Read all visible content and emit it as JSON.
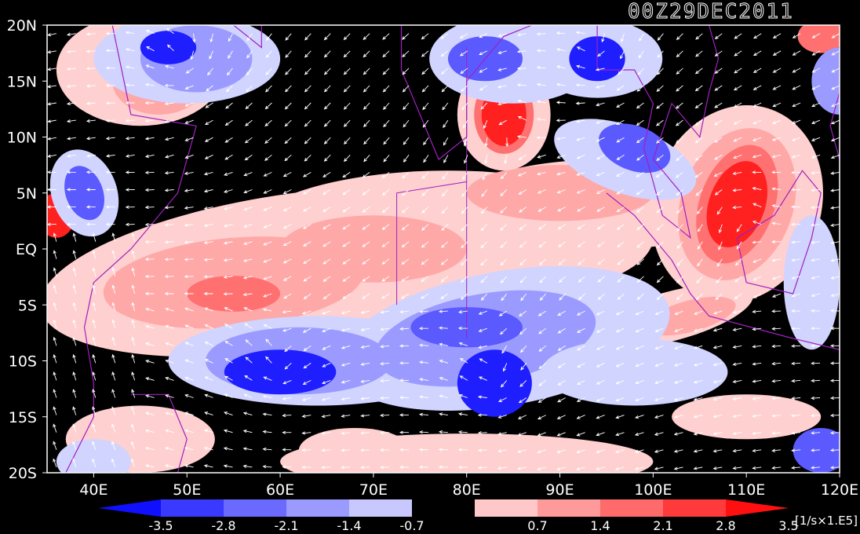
{
  "title": "00Z29DEC2011",
  "map": {
    "lat_labels": [
      "20N",
      "15N",
      "10N",
      "5N",
      "EQ",
      "5S",
      "10S",
      "15S",
      "20S"
    ],
    "lon_labels": [
      "40E",
      "50E",
      "60E",
      "70E",
      "80E",
      "90E",
      "100E",
      "110E",
      "120E"
    ],
    "lon_range": [
      35,
      120
    ],
    "lat_range": [
      -20,
      20
    ],
    "field": "vorticity with wind vectors",
    "colors": {
      "background": "#000000",
      "neg_strong": "#1e1eff",
      "neg_mid": "#5a5aff",
      "neg_weak": "#9b9bff",
      "neg_faint": "#d0d4ff",
      "pos_faint": "#ffd0d0",
      "pos_weak": "#ffa8a8",
      "pos_mid": "#ff7070",
      "pos_strong": "#ff2020",
      "coast": "#a020c0",
      "vector": "#ffffff"
    }
  },
  "colorbar": {
    "labels": [
      "-3.5",
      "-2.8",
      "-2.1",
      "-1.4",
      "-0.7",
      "0.7",
      "1.4",
      "2.1",
      "2.8",
      "3.5"
    ],
    "units": "[1/s×1.E5]",
    "colors": [
      "#1010ff",
      "#3a3aff",
      "#6a6aff",
      "#9a9aff",
      "#c8c8ff",
      "#000000",
      "#ffc8c8",
      "#ff9a9a",
      "#ff6a6a",
      "#ff3a3a",
      "#ff1010"
    ]
  }
}
